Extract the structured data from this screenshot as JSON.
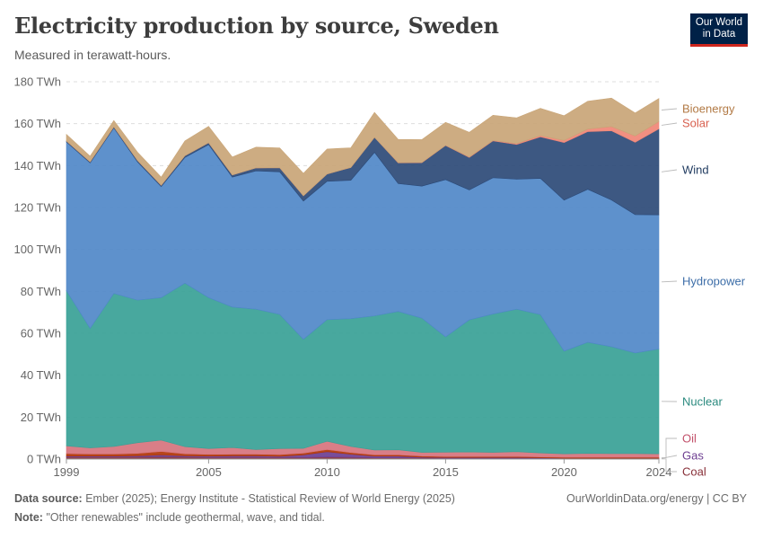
{
  "header": {
    "title": "Electricity production by source, Sweden",
    "subtitle": "Measured in terawatt-hours.",
    "logo_line1": "Our World",
    "logo_line2": "in Data",
    "logo_colors": {
      "background": "#002147",
      "accent": "#ce261e"
    }
  },
  "footer": {
    "source_label": "Data source:",
    "source_text": "Ember (2025); Energy Institute - Statistical Review of World Energy (2025)",
    "note_label": "Note:",
    "note_text": "\"Other renewables\" include geothermal, wave, and tidal.",
    "site": "OurWorldinData.org/energy | CC BY"
  },
  "chart_data": {
    "type": "area",
    "stacked": true,
    "title": "Electricity production by source, Sweden",
    "subtitle": "Measured in terawatt-hours.",
    "unit": "TWh",
    "x": [
      1999,
      2000,
      2001,
      2002,
      2003,
      2004,
      2005,
      2006,
      2007,
      2008,
      2009,
      2010,
      2011,
      2012,
      2013,
      2014,
      2015,
      2016,
      2017,
      2018,
      2019,
      2020,
      2021,
      2022,
      2023,
      2024
    ],
    "x_ticks": [
      1999,
      2005,
      2010,
      2015,
      2020,
      2024
    ],
    "y_ticks": [
      0,
      20,
      40,
      60,
      80,
      100,
      120,
      140,
      160,
      180
    ],
    "y_tick_labels": [
      "0 TWh",
      "20 TWh",
      "40 TWh",
      "60 TWh",
      "80 TWh",
      "100 TWh",
      "120 TWh",
      "140 TWh",
      "160 TWh",
      "180 TWh"
    ],
    "ylim": [
      0,
      180
    ],
    "grid": "horizontal-dashed",
    "legend": "right-inline-labels",
    "series": [
      {
        "name": "Coal",
        "color": "#883039",
        "values": [
          1.0,
          1.0,
          1.0,
          1.0,
          1.2,
          1.0,
          0.8,
          0.8,
          0.8,
          0.7,
          0.7,
          1.0,
          0.8,
          0.6,
          0.6,
          0.5,
          0.4,
          0.4,
          0.4,
          0.4,
          0.3,
          0.2,
          0.2,
          0.2,
          0.2,
          0.2
        ]
      },
      {
        "name": "Gas",
        "color": "#6d3e91",
        "values": [
          0.4,
          0.4,
          0.4,
          0.5,
          0.8,
          0.5,
          0.6,
          0.7,
          0.7,
          0.6,
          1.3,
          2.5,
          1.5,
          0.8,
          0.8,
          0.4,
          0.3,
          0.3,
          0.3,
          0.3,
          0.3,
          0.2,
          0.2,
          0.2,
          0.2,
          0.2
        ]
      },
      {
        "name": "Oil",
        "color": "#b13507",
        "values": [
          1.2,
          1.0,
          1.0,
          1.2,
          1.6,
          1.0,
          0.8,
          0.8,
          0.8,
          0.8,
          0.8,
          1.0,
          0.8,
          0.6,
          0.6,
          0.5,
          0.5,
          0.5,
          0.5,
          0.5,
          0.4,
          0.4,
          0.4,
          0.4,
          0.4,
          0.4
        ]
      },
      {
        "name": "Other renewables",
        "color": "#d6737d",
        "values": [
          3.7,
          2.9,
          3.6,
          5.1,
          5.4,
          3.4,
          2.8,
          3.2,
          2.2,
          2.9,
          2.3,
          4.0,
          2.9,
          2.3,
          2.4,
          1.8,
          2.1,
          2.2,
          2.0,
          2.3,
          1.9,
          1.7,
          1.9,
          1.8,
          1.8,
          1.7
        ]
      },
      {
        "name": "Nuclear",
        "color": "#38a196",
        "values": [
          74,
          57,
          73,
          68,
          68,
          78,
          72,
          67,
          67,
          64,
          52,
          58,
          61,
          64,
          66,
          64,
          55,
          63,
          66,
          68,
          66,
          49,
          53,
          51,
          48,
          50
        ]
      },
      {
        "name": "Hydropower",
        "color": "#5088c8",
        "values": [
          71,
          79,
          79,
          66,
          53,
          60,
          73,
          62,
          66,
          68,
          66,
          66,
          66,
          78,
          61,
          63,
          75,
          62,
          65,
          62,
          65,
          72,
          73,
          70,
          66,
          64
        ]
      },
      {
        "name": "Wind",
        "color": "#2d4a77",
        "values": [
          0.4,
          0.5,
          0.5,
          0.6,
          0.6,
          0.8,
          0.9,
          1.0,
          1.4,
          2.0,
          2.5,
          3.5,
          6.1,
          7.2,
          9.9,
          11.2,
          16.3,
          15.5,
          17.6,
          16.6,
          19.8,
          27.5,
          27.5,
          33.0,
          34.5,
          41.0
        ]
      },
      {
        "name": "Solar",
        "color": "#f08576",
        "values": [
          0,
          0,
          0,
          0,
          0,
          0,
          0,
          0,
          0,
          0,
          0,
          0,
          0,
          0,
          0.1,
          0.1,
          0.1,
          0.2,
          0.2,
          0.4,
          0.6,
          1.0,
          1.2,
          2.0,
          3.0,
          3.5
        ]
      },
      {
        "name": "Bioenergy",
        "color": "#c9a577",
        "values": [
          3.2,
          2.7,
          3.0,
          4.0,
          3.9,
          7.1,
          7.8,
          8.6,
          9.9,
          9.4,
          10.7,
          11.9,
          9.4,
          11.9,
          11.1,
          10.9,
          10.9,
          11.8,
          12.0,
          12.3,
          13.0,
          11.8,
          13.3,
          13.6,
          11.0,
          11.0
        ]
      }
    ]
  }
}
